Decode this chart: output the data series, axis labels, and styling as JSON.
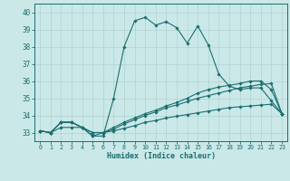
{
  "xlabel": "Humidex (Indice chaleur)",
  "background_color": "#cbe8e8",
  "line_color": "#1a6e6e",
  "xlim_min": -0.5,
  "xlim_max": 23.5,
  "ylim_min": 32.5,
  "ylim_max": 40.5,
  "xticks": [
    0,
    1,
    2,
    3,
    4,
    5,
    6,
    7,
    8,
    9,
    10,
    11,
    12,
    13,
    14,
    15,
    16,
    17,
    18,
    19,
    20,
    21,
    22,
    23
  ],
  "yticks": [
    33,
    34,
    35,
    36,
    37,
    38,
    39,
    40
  ],
  "series1": [
    33.1,
    33.0,
    33.6,
    33.6,
    33.3,
    32.8,
    32.8,
    35.0,
    38.0,
    39.5,
    39.7,
    39.25,
    39.45,
    39.1,
    38.2,
    39.2,
    38.1,
    36.4,
    35.7,
    35.5,
    35.6,
    35.6,
    34.85,
    34.1
  ],
  "series2": [
    33.1,
    33.0,
    33.6,
    33.6,
    33.3,
    32.8,
    33.0,
    33.3,
    33.6,
    33.85,
    34.1,
    34.3,
    34.55,
    34.75,
    35.0,
    35.3,
    35.5,
    35.65,
    35.75,
    35.85,
    36.0,
    36.0,
    35.5,
    34.1
  ],
  "series3": [
    33.1,
    33.0,
    33.6,
    33.6,
    33.3,
    33.0,
    33.0,
    33.2,
    33.5,
    33.75,
    34.0,
    34.2,
    34.45,
    34.6,
    34.8,
    35.0,
    35.15,
    35.3,
    35.45,
    35.6,
    35.7,
    35.8,
    35.85,
    34.1
  ],
  "series4": [
    33.1,
    33.0,
    33.3,
    33.3,
    33.3,
    33.0,
    33.0,
    33.1,
    33.25,
    33.4,
    33.6,
    33.7,
    33.85,
    33.95,
    34.05,
    34.15,
    34.25,
    34.35,
    34.45,
    34.5,
    34.55,
    34.6,
    34.65,
    34.1
  ]
}
